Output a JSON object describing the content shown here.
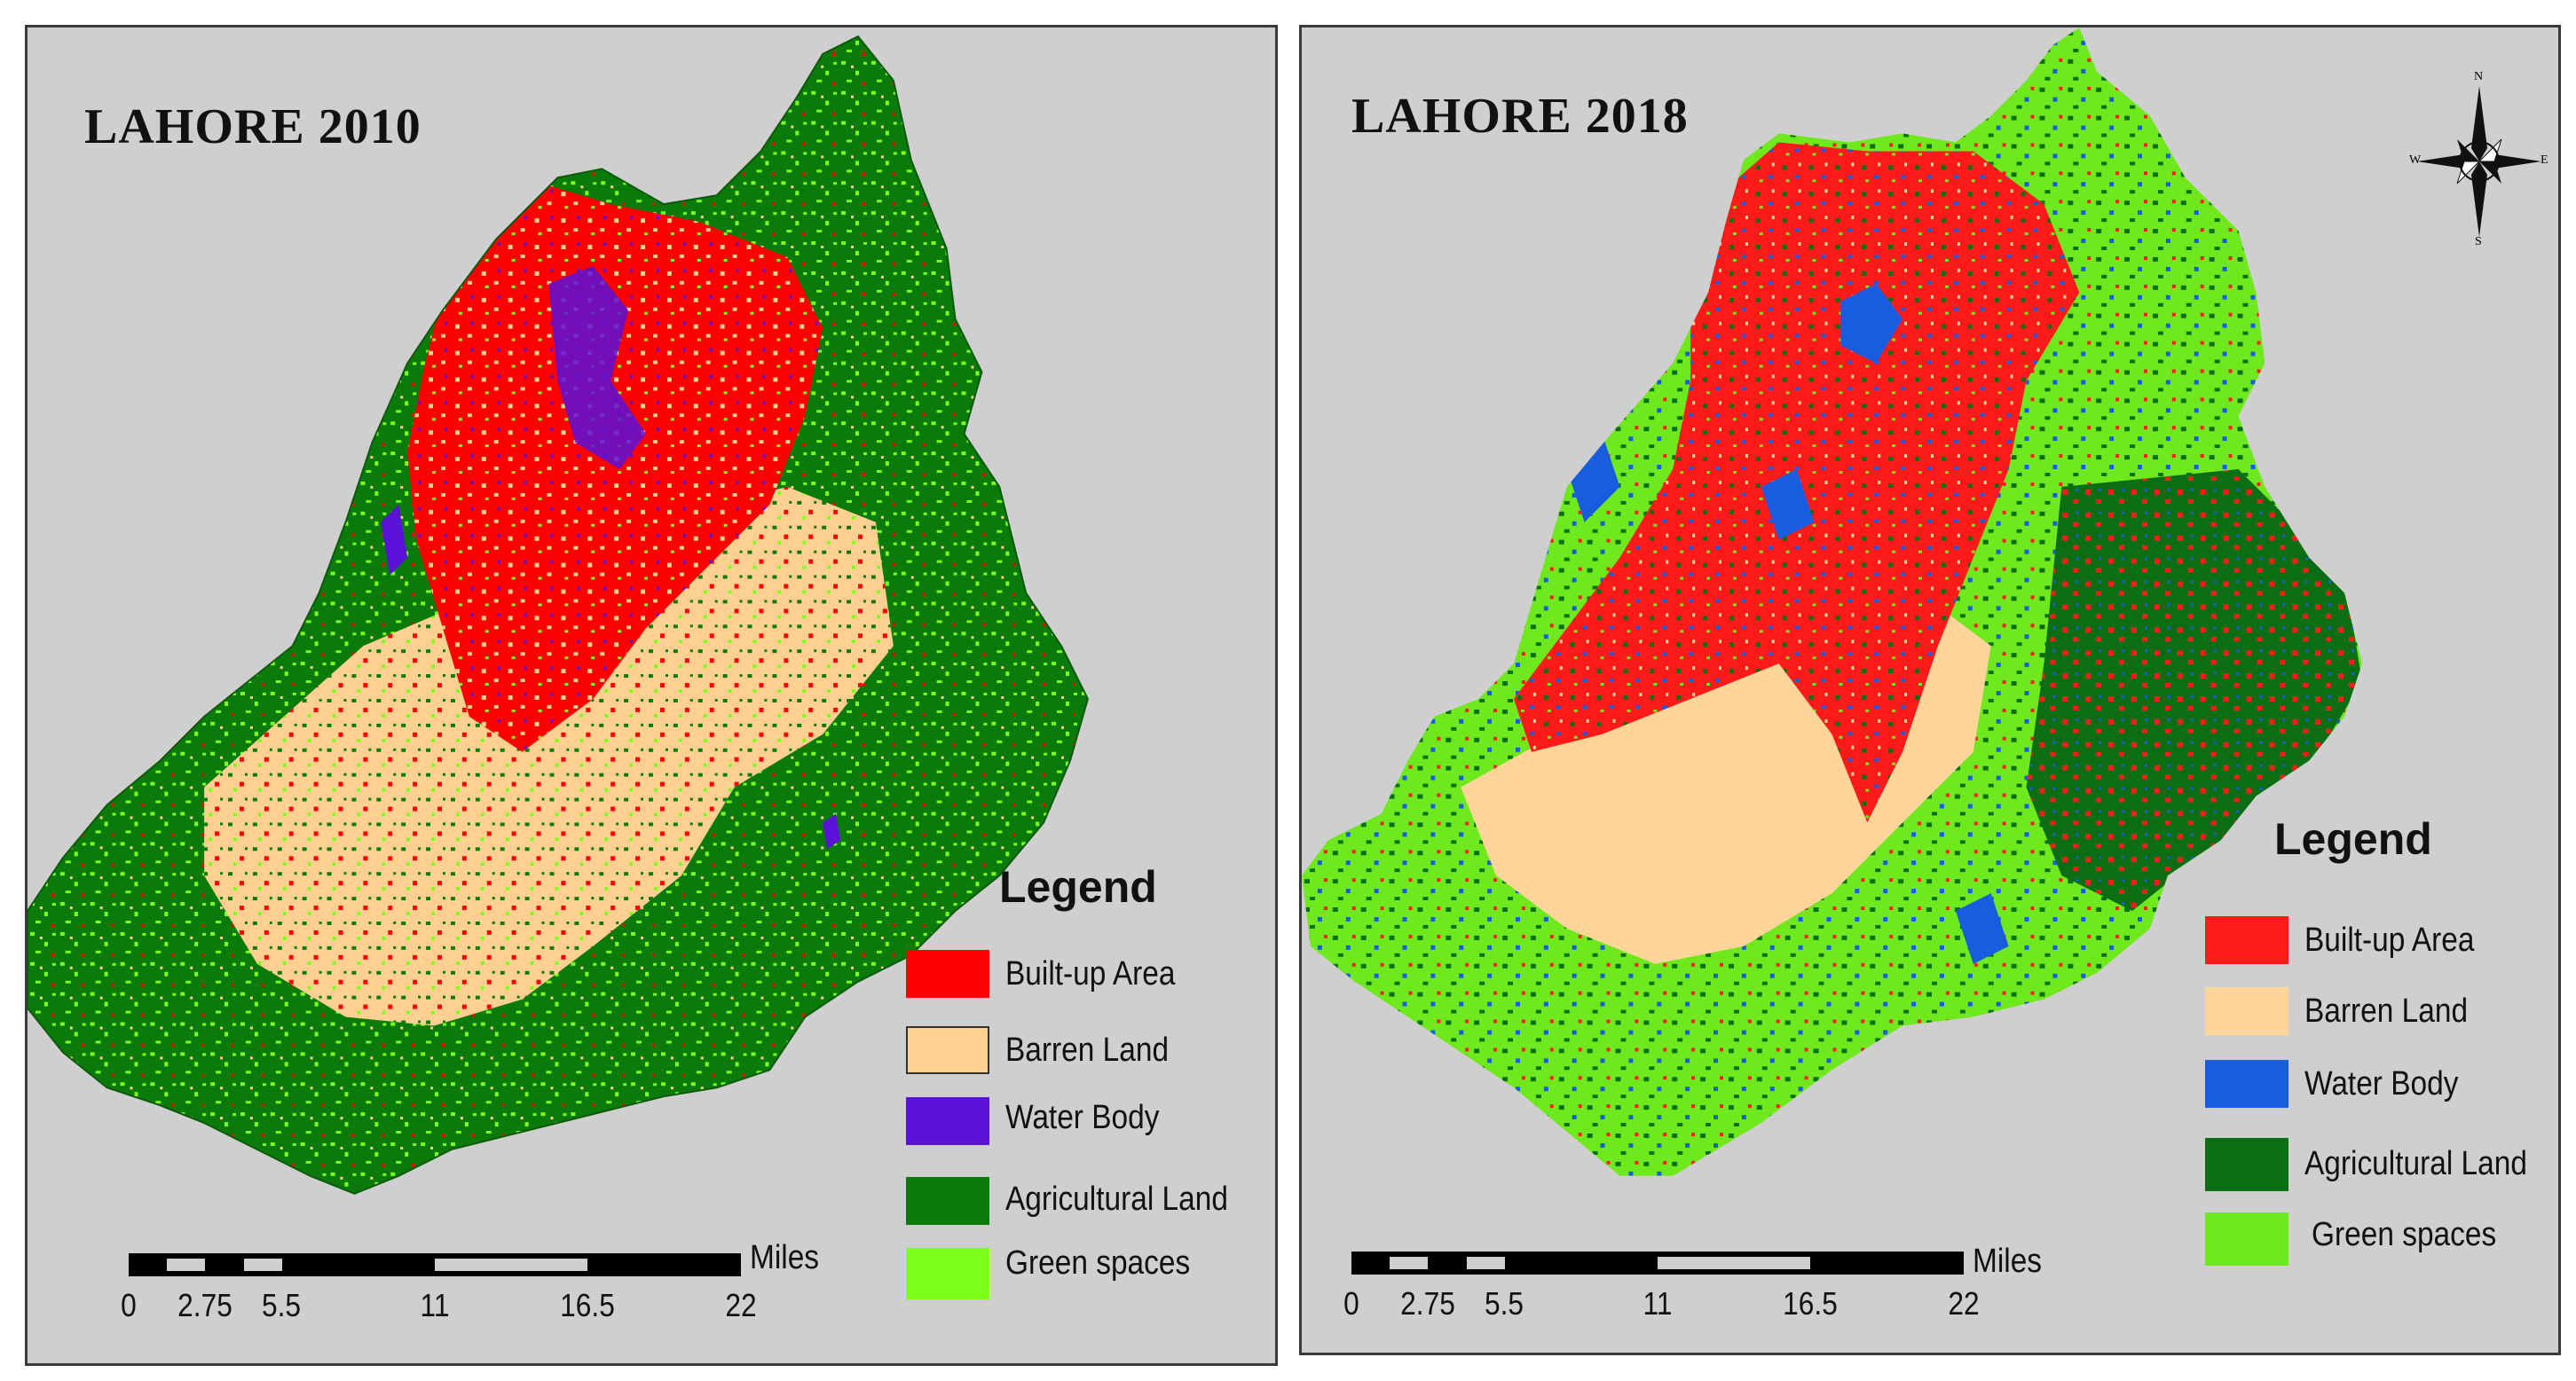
{
  "maps": [
    {
      "title": "LAHORE 2010",
      "legend": {
        "title": "Legend",
        "items": [
          {
            "label": "Built-up Area",
            "color": "#ff0000"
          },
          {
            "label": "Barren Land",
            "color": "#ffd08f"
          },
          {
            "label": "Water Body",
            "color": "#5a12d8"
          },
          {
            "label": "Agricultural Land",
            "color": "#0a7a0a"
          },
          {
            "label": "Green spaces",
            "color": "#7cff1a"
          }
        ]
      },
      "scale_bar": {
        "ticks": [
          "0",
          "2.75",
          "5.5",
          "11",
          "16.5",
          "22"
        ],
        "units": "Miles"
      }
    },
    {
      "title": "LAHORE 2018",
      "legend": {
        "title": "Legend",
        "items": [
          {
            "label": "Built-up Area",
            "color": "#ff1a1a"
          },
          {
            "label": "Barren Land",
            "color": "#ffd59a"
          },
          {
            "label": "Water Body",
            "color": "#1a5ce0"
          },
          {
            "label": "Agricultural Land",
            "color": "#0b6e14"
          },
          {
            "label": "Green spaces",
            "color": "#6fe81e"
          }
        ]
      },
      "scale_bar": {
        "ticks": [
          "0",
          "2.75",
          "5.5",
          "11",
          "16.5",
          "22"
        ],
        "units": "Miles"
      },
      "north_arrow": {
        "letters": [
          "N",
          "E",
          "S",
          "W"
        ]
      }
    }
  ],
  "colors": {
    "background": "#cfcfcf",
    "border": "#3a3a3a"
  }
}
